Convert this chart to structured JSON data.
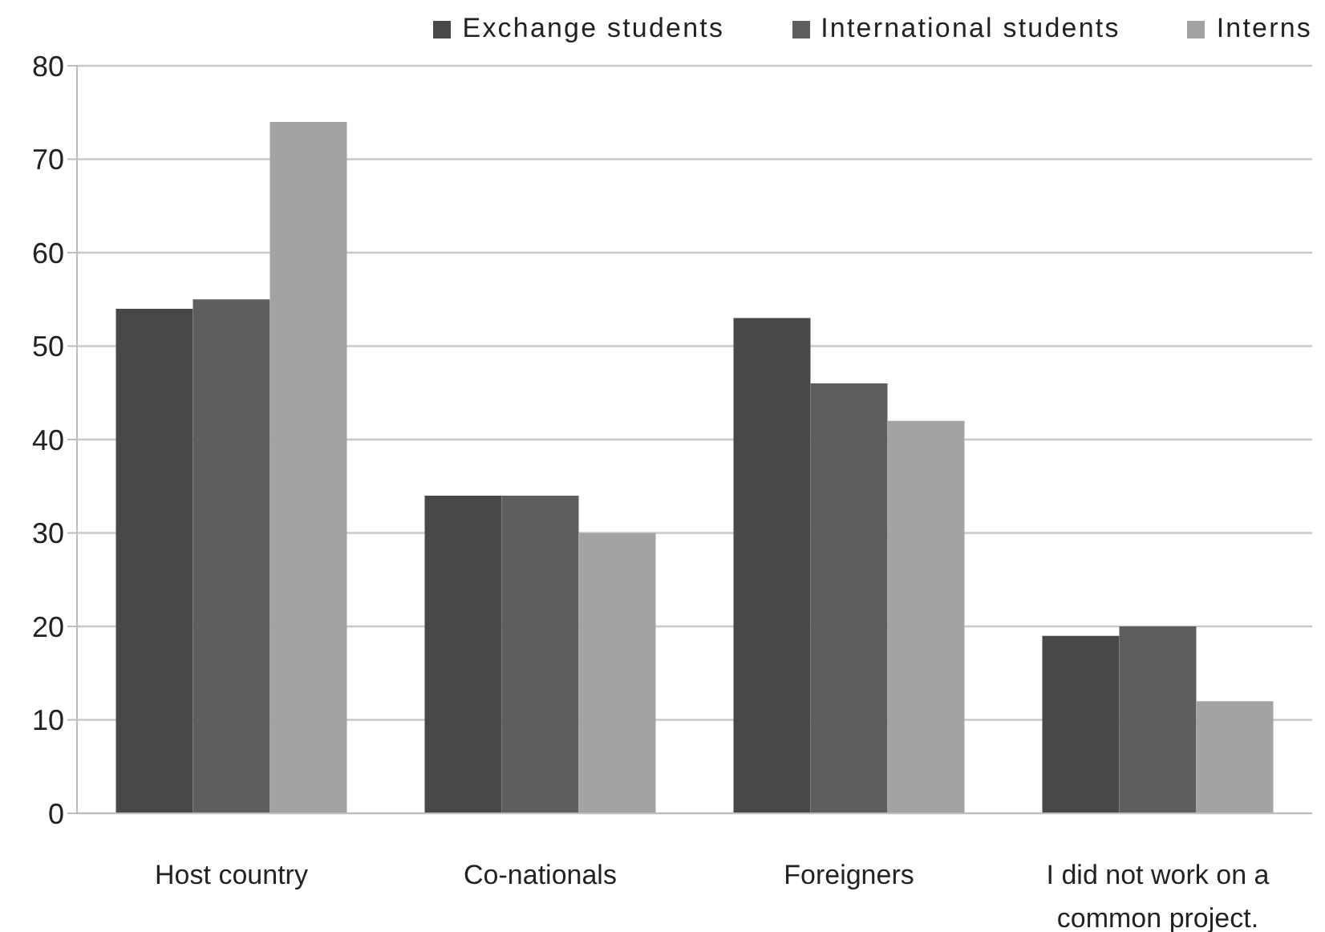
{
  "chart_data": {
    "type": "bar",
    "categories": [
      "Host country",
      "Co-nationals",
      "Foreigners",
      "I did not work on a common project."
    ],
    "series": [
      {
        "name": "Exchange students",
        "color": "#484848",
        "values": [
          54,
          34,
          53,
          19
        ]
      },
      {
        "name": "International students",
        "color": "#5e5e5e",
        "values": [
          55,
          34,
          46,
          20
        ]
      },
      {
        "name": "Interns",
        "color": "#a3a3a3",
        "values": [
          74,
          30,
          42,
          12
        ]
      }
    ],
    "ylim": [
      0,
      80
    ],
    "yticks": [
      0,
      10,
      20,
      30,
      40,
      50,
      60,
      70,
      80
    ],
    "grid": "y",
    "legend": "top right"
  }
}
